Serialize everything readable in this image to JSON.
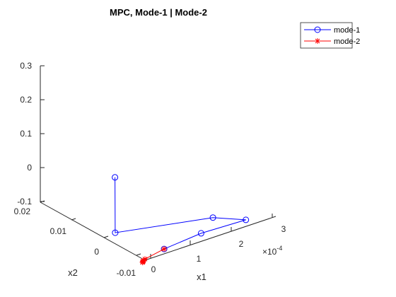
{
  "chart_data": {
    "type": "line3d",
    "title": "MPC, Mode-1 | Mode-2",
    "xlabel": "x1",
    "ylabel": "x2",
    "zlabel": "",
    "x_exponent_label": "×10",
    "x_exponent_value": "-4",
    "x_ticks": [
      "0",
      "1",
      "2",
      "3"
    ],
    "y_ticks": [
      "-0.01",
      "0",
      "0.01",
      "0.02"
    ],
    "z_ticks": [
      "-0.1",
      "0",
      "0.1",
      "0.2",
      "0.3"
    ],
    "xlim": [
      0,
      3.2
    ],
    "ylim": [
      -0.012,
      0.022
    ],
    "zlim": [
      -0.1,
      0.3
    ],
    "legend_location": "northeast",
    "series": [
      {
        "name": "mode-1",
        "color": "#0000ff",
        "marker": "circle",
        "points": [
          {
            "x1": 0.0,
            "x2": 0.001,
            "x3": 0.17
          },
          {
            "x1": 0.02,
            "x2": 0.0012,
            "x3": 0.005
          },
          {
            "x1": 2.4,
            "x2": 0.0009,
            "x3": -0.045
          },
          {
            "x1": 2.9,
            "x2": -0.003,
            "x3": -0.05
          },
          {
            "x1": 1.8,
            "x2": -0.003,
            "x3": -0.045
          },
          {
            "x1": 0.65,
            "x2": -0.006,
            "x3": -0.028
          }
        ]
      },
      {
        "name": "mode-2",
        "color": "#ff0000",
        "marker": "asterisk",
        "points": [
          {
            "x1": 0.65,
            "x2": -0.006,
            "x3": -0.028
          },
          {
            "x1": 0.1,
            "x2": -0.007,
            "x3": -0.03
          },
          {
            "x1": 0.05,
            "x2": -0.0072,
            "x3": -0.031
          },
          {
            "x1": 0.03,
            "x2": -0.0073,
            "x3": -0.032
          },
          {
            "x1": 0.02,
            "x2": -0.0073,
            "x3": -0.033
          },
          {
            "x1": 0.01,
            "x2": -0.0074,
            "x3": -0.034
          }
        ]
      }
    ]
  }
}
